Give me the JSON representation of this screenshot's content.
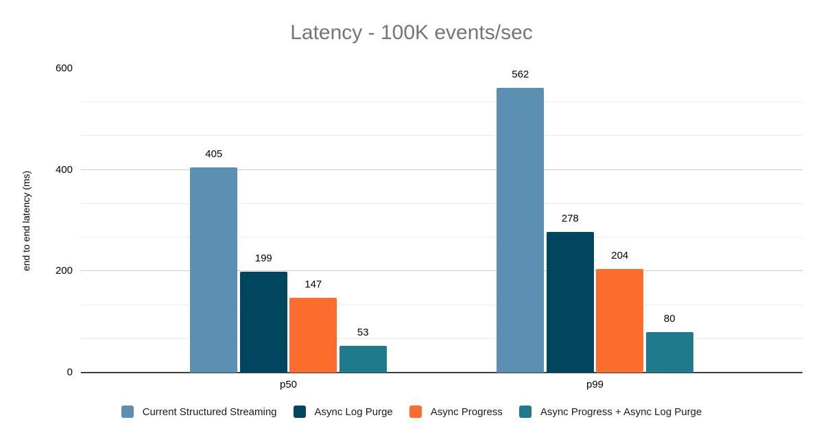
{
  "chart_data": {
    "type": "bar",
    "title": "Latency - 100K events/sec",
    "title_color": "#757575",
    "categories": [
      "p50",
      "p99"
    ],
    "series": [
      {
        "name": "Current Structured Streaming",
        "color": "#5b90b2",
        "values": [
          405,
          562
        ]
      },
      {
        "name": "Async Log Purge",
        "color": "#02455f",
        "values": [
          199,
          278
        ]
      },
      {
        "name": "Async Progress",
        "color": "#fc6d2d",
        "values": [
          147,
          204
        ]
      },
      {
        "name": "Async Progress + Async Log Purge",
        "color": "#1e7a8c",
        "values": [
          53,
          80
        ]
      }
    ],
    "xlabel": "",
    "ylabel": "end to end latency (ms)",
    "ylim": [
      0,
      600
    ],
    "yticks": [
      0,
      200,
      400,
      600
    ],
    "minor_step": 66.667,
    "grid": true,
    "legend_position": "bottom",
    "bar_value_labels": [
      405,
      199,
      147,
      53,
      562,
      278,
      204,
      80
    ]
  }
}
